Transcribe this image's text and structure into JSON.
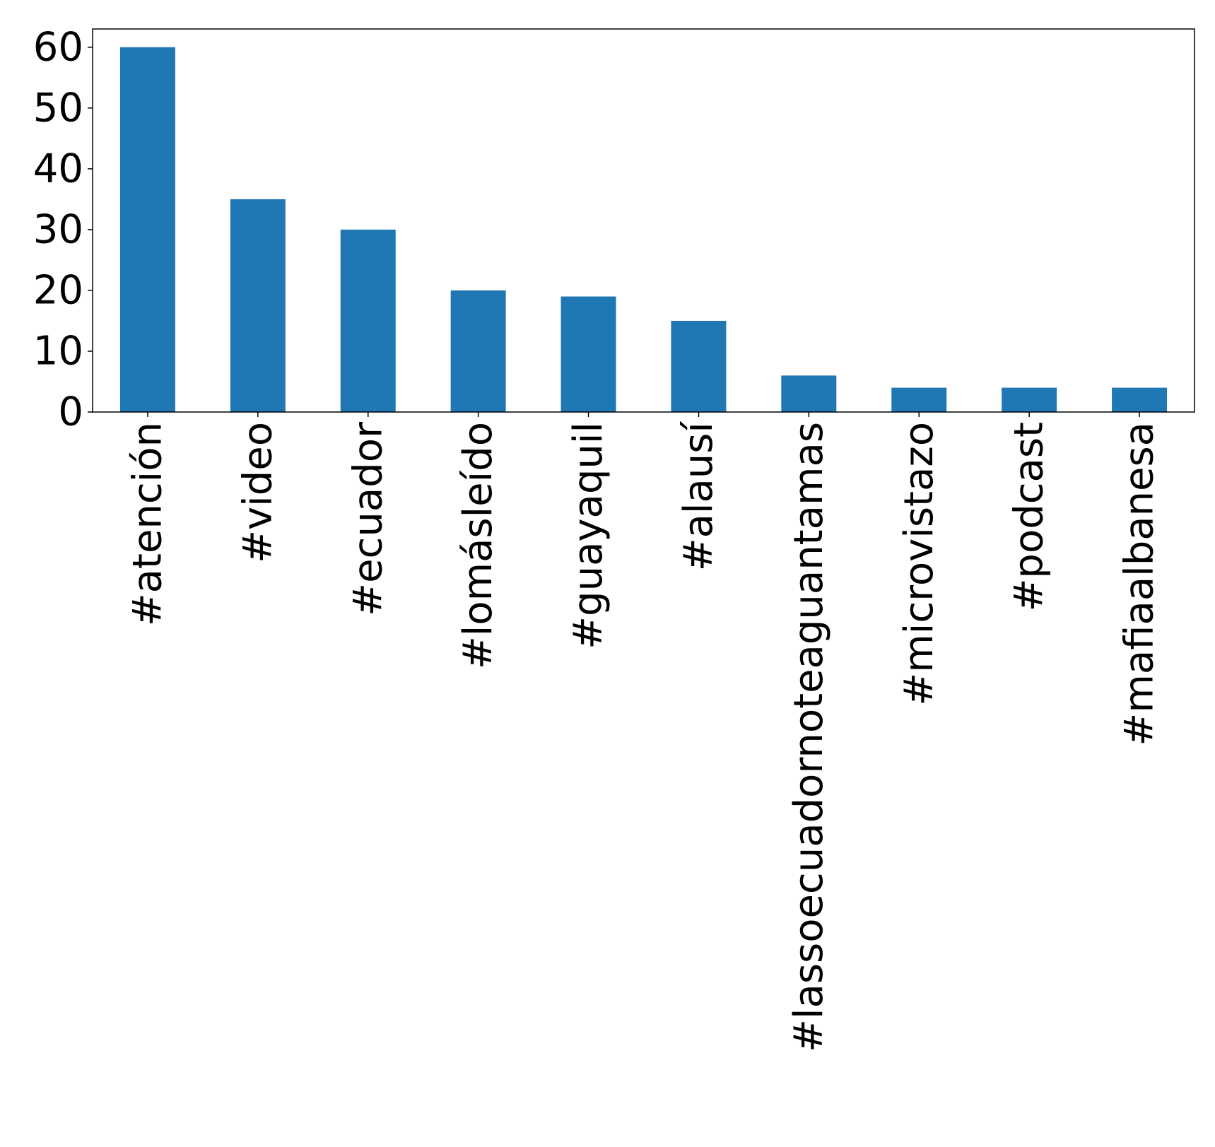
{
  "chart_data": {
    "type": "bar",
    "categories": [
      "#atención",
      "#video",
      "#ecuador",
      "#lomásleído",
      "#guayaquil",
      "#alausí",
      "#lassoecuadornoteaguantamas",
      "#microvistazo",
      "#podcast",
      "#mafiaalbanesa"
    ],
    "values": [
      60,
      35,
      30,
      20,
      19,
      15,
      6,
      4,
      4,
      4
    ],
    "title": "",
    "xlabel": "",
    "ylabel": "",
    "ylim": [
      0,
      63
    ],
    "yticks": [
      0,
      10,
      20,
      30,
      40,
      50,
      60
    ],
    "grid": false,
    "bar_color": "#1f77b4"
  }
}
